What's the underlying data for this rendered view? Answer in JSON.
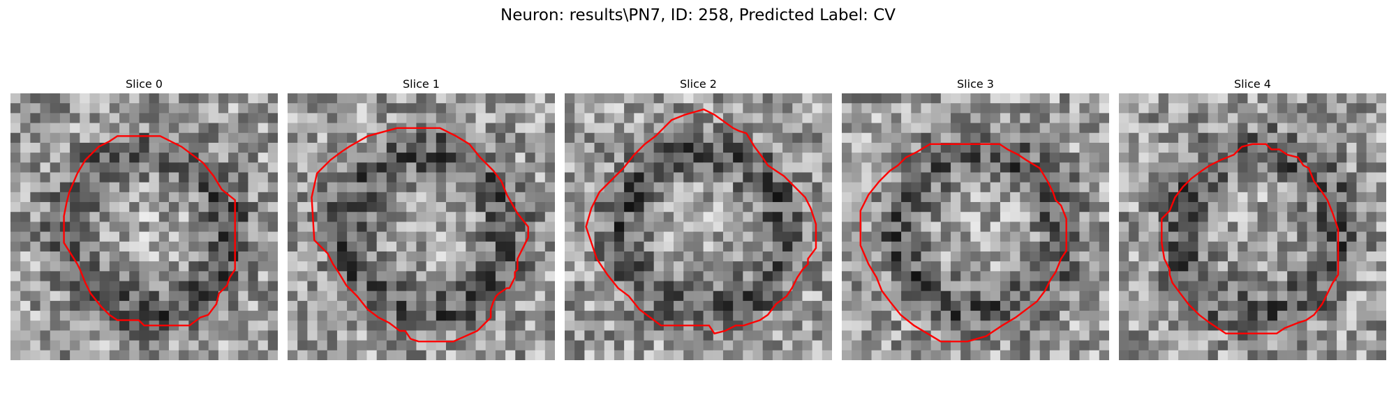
{
  "figure": {
    "title": "Neuron: results\\PN7, ID: 258, Predicted Label: CV"
  },
  "style": {
    "contour_color": "#ff0000",
    "colormap": "gray"
  },
  "slices": [
    {
      "title": "Slice 0",
      "seed": 11,
      "contour": [
        [
          0.4,
          0.16
        ],
        [
          0.56,
          0.16
        ],
        [
          0.64,
          0.2
        ],
        [
          0.72,
          0.26
        ],
        [
          0.76,
          0.31
        ],
        [
          0.79,
          0.36
        ],
        [
          0.84,
          0.4
        ],
        [
          0.84,
          0.66
        ],
        [
          0.82,
          0.69
        ],
        [
          0.81,
          0.72
        ],
        [
          0.78,
          0.75
        ],
        [
          0.77,
          0.79
        ],
        [
          0.74,
          0.83
        ],
        [
          0.71,
          0.84
        ],
        [
          0.67,
          0.87
        ],
        [
          0.5,
          0.87
        ],
        [
          0.48,
          0.85
        ],
        [
          0.4,
          0.85
        ],
        [
          0.37,
          0.83
        ],
        [
          0.34,
          0.8
        ],
        [
          0.3,
          0.75
        ],
        [
          0.28,
          0.71
        ],
        [
          0.26,
          0.66
        ],
        [
          0.25,
          0.64
        ],
        [
          0.2,
          0.56
        ],
        [
          0.2,
          0.46
        ],
        [
          0.21,
          0.41
        ],
        [
          0.22,
          0.37
        ],
        [
          0.25,
          0.3
        ],
        [
          0.28,
          0.25
        ],
        [
          0.3,
          0.23
        ],
        [
          0.33,
          0.2
        ],
        [
          0.37,
          0.18
        ]
      ]
    },
    {
      "title": "Slice 1",
      "seed": 23,
      "contour": [
        [
          0.23,
          0.2
        ],
        [
          0.3,
          0.16
        ],
        [
          0.41,
          0.13
        ],
        [
          0.57,
          0.13
        ],
        [
          0.63,
          0.16
        ],
        [
          0.68,
          0.19
        ],
        [
          0.72,
          0.24
        ],
        [
          0.77,
          0.29
        ],
        [
          0.8,
          0.33
        ],
        [
          0.82,
          0.38
        ],
        [
          0.86,
          0.45
        ],
        [
          0.9,
          0.5
        ],
        [
          0.9,
          0.54
        ],
        [
          0.86,
          0.62
        ],
        [
          0.86,
          0.66
        ],
        [
          0.85,
          0.67
        ],
        [
          0.85,
          0.69
        ],
        [
          0.83,
          0.73
        ],
        [
          0.82,
          0.73
        ],
        [
          0.79,
          0.75
        ],
        [
          0.78,
          0.76
        ],
        [
          0.77,
          0.78
        ],
        [
          0.76,
          0.81
        ],
        [
          0.76,
          0.84
        ],
        [
          0.74,
          0.86
        ],
        [
          0.71,
          0.89
        ],
        [
          0.62,
          0.93
        ],
        [
          0.6,
          0.93
        ],
        [
          0.52,
          0.93
        ],
        [
          0.49,
          0.93
        ],
        [
          0.46,
          0.92
        ],
        [
          0.44,
          0.89
        ],
        [
          0.42,
          0.89
        ],
        [
          0.38,
          0.86
        ],
        [
          0.34,
          0.84
        ],
        [
          0.3,
          0.81
        ],
        [
          0.26,
          0.76
        ],
        [
          0.22,
          0.72
        ],
        [
          0.19,
          0.67
        ],
        [
          0.17,
          0.64
        ],
        [
          0.15,
          0.6
        ],
        [
          0.1,
          0.55
        ],
        [
          0.09,
          0.39
        ],
        [
          0.11,
          0.3
        ],
        [
          0.16,
          0.25
        ],
        [
          0.2,
          0.22
        ]
      ]
    },
    {
      "title": "Slice 2",
      "seed": 37,
      "contour": [
        [
          0.4,
          0.1
        ],
        [
          0.45,
          0.08
        ],
        [
          0.52,
          0.06
        ],
        [
          0.56,
          0.08
        ],
        [
          0.63,
          0.13
        ],
        [
          0.65,
          0.14
        ],
        [
          0.68,
          0.15
        ],
        [
          0.71,
          0.2
        ],
        [
          0.74,
          0.24
        ],
        [
          0.76,
          0.27
        ],
        [
          0.79,
          0.29
        ],
        [
          0.82,
          0.31
        ],
        [
          0.85,
          0.34
        ],
        [
          0.87,
          0.36
        ],
        [
          0.9,
          0.39
        ],
        [
          0.92,
          0.43
        ],
        [
          0.94,
          0.49
        ],
        [
          0.94,
          0.58
        ],
        [
          0.91,
          0.62
        ],
        [
          0.91,
          0.64
        ],
        [
          0.89,
          0.66
        ],
        [
          0.87,
          0.69
        ],
        [
          0.85,
          0.73
        ],
        [
          0.83,
          0.76
        ],
        [
          0.79,
          0.79
        ],
        [
          0.76,
          0.83
        ],
        [
          0.73,
          0.85
        ],
        [
          0.7,
          0.86
        ],
        [
          0.67,
          0.87
        ],
        [
          0.64,
          0.87
        ],
        [
          0.6,
          0.89
        ],
        [
          0.56,
          0.9
        ],
        [
          0.54,
          0.87
        ],
        [
          0.36,
          0.87
        ],
        [
          0.32,
          0.84
        ],
        [
          0.28,
          0.81
        ],
        [
          0.24,
          0.76
        ],
        [
          0.2,
          0.73
        ],
        [
          0.16,
          0.68
        ],
        [
          0.12,
          0.62
        ],
        [
          0.1,
          0.56
        ],
        [
          0.08,
          0.5
        ],
        [
          0.1,
          0.43
        ],
        [
          0.13,
          0.37
        ],
        [
          0.17,
          0.33
        ],
        [
          0.22,
          0.28
        ],
        [
          0.26,
          0.23
        ],
        [
          0.3,
          0.19
        ],
        [
          0.34,
          0.16
        ],
        [
          0.37,
          0.13
        ]
      ]
    },
    {
      "title": "Slice 3",
      "seed": 53,
      "contour": [
        [
          0.24,
          0.24
        ],
        [
          0.28,
          0.22
        ],
        [
          0.33,
          0.19
        ],
        [
          0.35,
          0.19
        ],
        [
          0.39,
          0.19
        ],
        [
          0.45,
          0.19
        ],
        [
          0.53,
          0.19
        ],
        [
          0.59,
          0.19
        ],
        [
          0.62,
          0.21
        ],
        [
          0.66,
          0.23
        ],
        [
          0.69,
          0.25
        ],
        [
          0.74,
          0.28
        ],
        [
          0.77,
          0.33
        ],
        [
          0.79,
          0.37
        ],
        [
          0.8,
          0.4
        ],
        [
          0.82,
          0.42
        ],
        [
          0.84,
          0.47
        ],
        [
          0.84,
          0.59
        ],
        [
          0.82,
          0.62
        ],
        [
          0.8,
          0.67
        ],
        [
          0.78,
          0.7
        ],
        [
          0.76,
          0.74
        ],
        [
          0.73,
          0.78
        ],
        [
          0.69,
          0.81
        ],
        [
          0.65,
          0.84
        ],
        [
          0.6,
          0.87
        ],
        [
          0.54,
          0.91
        ],
        [
          0.47,
          0.93
        ],
        [
          0.37,
          0.93
        ],
        [
          0.32,
          0.9
        ],
        [
          0.27,
          0.87
        ],
        [
          0.22,
          0.83
        ],
        [
          0.18,
          0.78
        ],
        [
          0.15,
          0.74
        ],
        [
          0.13,
          0.69
        ],
        [
          0.1,
          0.64
        ],
        [
          0.07,
          0.57
        ],
        [
          0.07,
          0.44
        ],
        [
          0.1,
          0.38
        ],
        [
          0.14,
          0.33
        ],
        [
          0.18,
          0.29
        ],
        [
          0.21,
          0.27
        ]
      ]
    },
    {
      "title": "Slice 4",
      "seed": 71,
      "contour": [
        [
          0.38,
          0.25
        ],
        [
          0.43,
          0.23
        ],
        [
          0.46,
          0.2
        ],
        [
          0.5,
          0.19
        ],
        [
          0.55,
          0.19
        ],
        [
          0.57,
          0.21
        ],
        [
          0.6,
          0.21
        ],
        [
          0.63,
          0.23
        ],
        [
          0.67,
          0.24
        ],
        [
          0.69,
          0.27
        ],
        [
          0.71,
          0.28
        ],
        [
          0.73,
          0.33
        ],
        [
          0.76,
          0.37
        ],
        [
          0.78,
          0.4
        ],
        [
          0.8,
          0.45
        ],
        [
          0.82,
          0.51
        ],
        [
          0.82,
          0.68
        ],
        [
          0.8,
          0.71
        ],
        [
          0.78,
          0.75
        ],
        [
          0.76,
          0.79
        ],
        [
          0.73,
          0.83
        ],
        [
          0.7,
          0.85
        ],
        [
          0.67,
          0.86
        ],
        [
          0.62,
          0.88
        ],
        [
          0.59,
          0.9
        ],
        [
          0.4,
          0.9
        ],
        [
          0.34,
          0.86
        ],
        [
          0.3,
          0.83
        ],
        [
          0.26,
          0.79
        ],
        [
          0.23,
          0.75
        ],
        [
          0.2,
          0.71
        ],
        [
          0.19,
          0.68
        ],
        [
          0.19,
          0.66
        ],
        [
          0.17,
          0.62
        ],
        [
          0.16,
          0.56
        ],
        [
          0.16,
          0.47
        ],
        [
          0.19,
          0.44
        ],
        [
          0.21,
          0.39
        ],
        [
          0.24,
          0.35
        ],
        [
          0.27,
          0.32
        ],
        [
          0.31,
          0.29
        ],
        [
          0.34,
          0.27
        ]
      ]
    }
  ]
}
